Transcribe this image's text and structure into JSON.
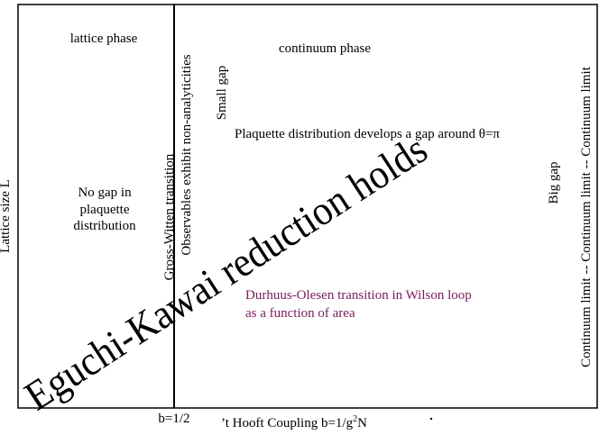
{
  "axes": {
    "y_label": "Lattice size L",
    "x_label": {
      "before": "’t Hooft Coupling b=1/g",
      "superscript": "2",
      "after": "N"
    },
    "x_marker": "b=1/2"
  },
  "regions": {
    "lattice_phase": "lattice phase",
    "continuum_phase": "continuum phase",
    "no_gap": [
      "No gap in",
      "plaquette",
      "distribution"
    ],
    "small_gap": "Small gap",
    "big_gap": "Big gap",
    "plaquette_gap": "Plaquette distribution develops a gap around θ=π",
    "observables": "Observables exhibit non-analyticities",
    "gross_witten": "Gross-Witten transition",
    "eguchi_kawai": "Eguchi-Kawai reduction holds",
    "durhuus_olesen": [
      "Durhuus-Olesen transition in Wilson loop",
      "as a function of area"
    ],
    "continuum_limit": "Continuum limit -- Continuum limit -- Continuum limit"
  }
}
